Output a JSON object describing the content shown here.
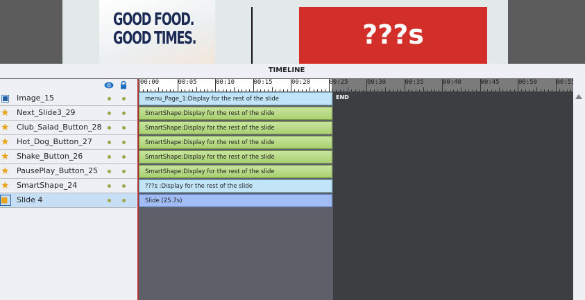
{
  "stage": {
    "headline": "GOOD FOOD.\nGOOD TIMES.",
    "red_box_text": "???s"
  },
  "timeline": {
    "title": "TIMELINE",
    "ruler_labels": [
      "00:00",
      "00:05",
      "00:10",
      "00:15",
      "00:20",
      "00:25",
      "00:30",
      "00:35",
      "00:40",
      "00:45",
      "00:50",
      "00:55"
    ],
    "end_label": "END",
    "slide_duration_s": 25.7,
    "layers": [
      {
        "name": "Image_15",
        "icon": "image-icon",
        "bar": "menu_Page_1:Display for the rest of the slide",
        "color": "blue"
      },
      {
        "name": "Next_Slide3_29",
        "icon": "star-icon",
        "bar": "SmartShape:Display for the rest of the slide",
        "color": "green"
      },
      {
        "name": "Club_Salad_Button_28",
        "icon": "star-icon",
        "bar": "SmartShape:Display for the rest of the slide",
        "color": "green"
      },
      {
        "name": "Hot_Dog_Button_27",
        "icon": "star-icon",
        "bar": "SmartShape:Display for the rest of the slide",
        "color": "green"
      },
      {
        "name": "Shake_Button_26",
        "icon": "star-icon",
        "bar": "SmartShape:Display for the rest of the slide",
        "color": "green"
      },
      {
        "name": "PausePlay_Button_25",
        "icon": "star-icon",
        "bar": "SmartShape:Display for the rest of the slide",
        "color": "green"
      },
      {
        "name": "SmartShape_24",
        "icon": "star-icon",
        "bar": "???s :Display for the rest of the slide",
        "color": "blue"
      },
      {
        "name": "Slide 4",
        "icon": "slide-icon",
        "bar": "Slide (25.7s)",
        "color": "slide",
        "selected": true
      }
    ]
  }
}
